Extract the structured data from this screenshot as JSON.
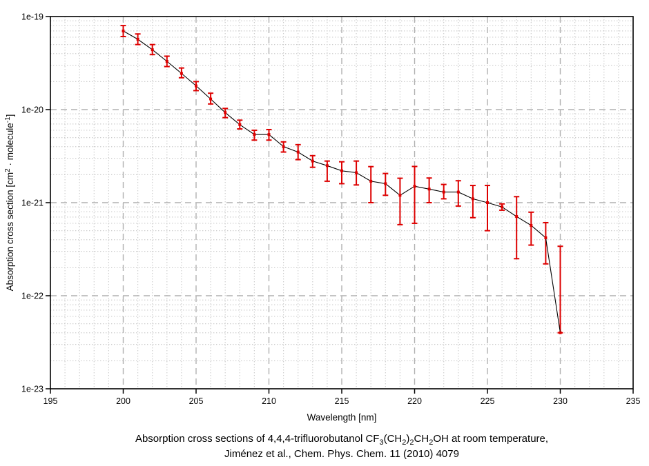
{
  "page": {
    "background": "#ffffff"
  },
  "chart_data": {
    "type": "line",
    "title": "Absorption cross sections of 4,4,4-trifluorobutanol CF3(CH2)2CH2OH at room temperature, Jiménez et al., Chem. Phys. Chem. 11 (2010) 4079",
    "title_lines": [
      [
        {
          "t": "Absorption cross sections of 4,4,4-trifluorobutanol CF"
        },
        {
          "t": "3",
          "sub": true
        },
        {
          "t": "(CH"
        },
        {
          "t": "2",
          "sub": true
        },
        {
          "t": ")"
        },
        {
          "t": "2",
          "sub": true
        },
        {
          "t": "CH"
        },
        {
          "t": "2",
          "sub": true
        },
        {
          "t": "OH at room temperature,"
        }
      ],
      [
        {
          "t": "Jiménez et al., Chem. Phys. Chem. 11 (2010) 4079"
        }
      ]
    ],
    "xlabel": "Wavelength [nm]",
    "ylabel": "Absorption cross section [cm2 · molecule-1]",
    "ylabel_segments": [
      {
        "t": "Absorption cross section [cm"
      },
      {
        "t": "2",
        "sup": true
      },
      {
        "t": " · molecule"
      },
      {
        "t": "-1",
        "sup": true
      },
      {
        "t": "]"
      }
    ],
    "xlim": [
      195,
      235
    ],
    "x_major_ticks": [
      195,
      200,
      205,
      210,
      215,
      220,
      225,
      230,
      235
    ],
    "x_minor_step": 1,
    "y_scale": "log",
    "ylim": [
      1e-23,
      1e-19
    ],
    "y_tick_labels": [
      "1e-19",
      "1e-20",
      "1e-21",
      "1e-22",
      "1e-23"
    ],
    "y_tick_exponents": [
      -19,
      -20,
      -21,
      -22,
      -23
    ],
    "grid": {
      "major": true,
      "minor": true
    },
    "legend": "none",
    "colors": {
      "series": "#dd0000",
      "line": "#000000",
      "frame": "#000000",
      "grid_major": "#b0b0b0",
      "grid_minor": "#cccccc",
      "text": "#000000"
    },
    "series": [
      {
        "name": "absorption cross section with error bars",
        "marker": "square",
        "x": [
          200,
          201,
          202,
          203,
          204,
          205,
          206,
          207,
          208,
          209,
          210,
          211,
          212,
          213,
          214,
          215,
          216,
          217,
          218,
          219,
          220,
          221,
          222,
          223,
          224,
          225,
          226,
          227,
          228,
          229,
          230
        ],
        "y": [
          7e-20,
          5.7e-20,
          4.4e-20,
          3.3e-20,
          2.45e-20,
          1.8e-20,
          1.3e-20,
          9.3e-21,
          6.9e-21,
          5.4e-21,
          5.4e-21,
          4e-21,
          3.5e-21,
          2.8e-21,
          2.5e-21,
          2.2e-21,
          2.1e-21,
          1.7e-21,
          1.6e-21,
          1.2e-21,
          1.5e-21,
          1.4e-21,
          1.3e-21,
          1.3e-21,
          1.1e-21,
          1e-21,
          9e-22,
          7.1e-22,
          5.7e-22,
          4.2e-22,
          4e-23
        ],
        "y_err_low": [
          6.1e-20,
          5e-20,
          3.9e-20,
          2.9e-20,
          2.2e-20,
          1.6e-20,
          1.15e-20,
          8.2e-21,
          6.2e-21,
          4.7e-21,
          4.7e-21,
          3.5e-21,
          2.9e-21,
          2.4e-21,
          1.7e-21,
          1.6e-21,
          1.55e-21,
          1e-21,
          1.2e-21,
          5.8e-22,
          6e-22,
          1e-21,
          1.1e-21,
          9.2e-22,
          6.9e-22,
          5e-22,
          8.3e-22,
          2.5e-22,
          3.5e-22,
          2.2e-22,
          4e-23
        ],
        "y_err_high": [
          8e-20,
          6.5e-20,
          5e-20,
          3.75e-20,
          2.8e-20,
          2e-20,
          1.5e-20,
          1.03e-20,
          7.7e-21,
          6e-21,
          6.1e-21,
          4.5e-21,
          4.2e-21,
          3.2e-21,
          2.8e-21,
          2.75e-21,
          2.8e-21,
          2.44e-21,
          2.06e-21,
          1.83e-21,
          2.45e-21,
          1.84e-21,
          1.57e-21,
          1.72e-21,
          1.53e-21,
          1.53e-21,
          9.7e-22,
          1.16e-21,
          7.9e-22,
          6.1e-22,
          3.4e-22
        ]
      }
    ]
  }
}
